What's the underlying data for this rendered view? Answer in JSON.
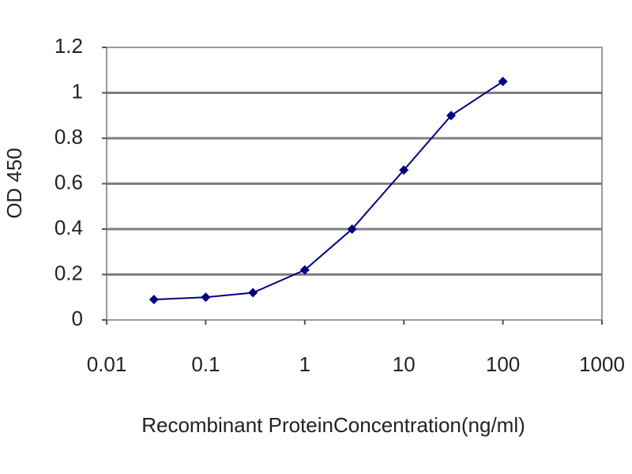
{
  "chart_data": {
    "type": "line",
    "x_label": "Recombinant ProteinConcentration(ng/ml)",
    "y_label": "OD 450",
    "x": [
      0.03,
      0.1,
      0.3,
      1,
      3,
      10,
      30,
      100
    ],
    "series": [
      {
        "name": "OD 450",
        "color": "#000080",
        "values": [
          0.09,
          0.1,
          0.12,
          0.22,
          0.4,
          0.66,
          0.9,
          1.05
        ]
      }
    ],
    "xscale": "log",
    "xlim": [
      0.01,
      1000
    ],
    "xticks": [
      0.01,
      0.1,
      1,
      10,
      100,
      1000
    ],
    "ylim": [
      0,
      1.2
    ],
    "yticks": [
      0,
      0.2,
      0.4,
      0.6,
      0.8,
      1,
      1.2
    ],
    "grid": true
  }
}
